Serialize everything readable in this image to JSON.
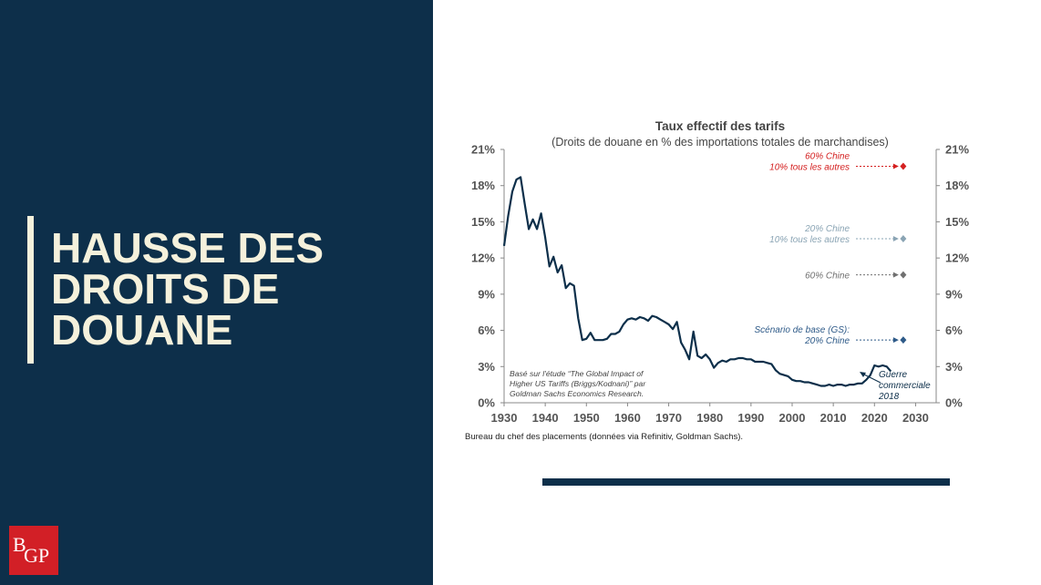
{
  "slide": {
    "title_lines": [
      "HAUSSE DES",
      "DROITS DE",
      "DOUANE"
    ],
    "logo_letters": [
      "B",
      "GP"
    ],
    "source": "Bureau du chef des placements (données via Refinitiv, Goldman Sachs)."
  },
  "colors": {
    "panel": "#0d2f4a",
    "title": "#f5f1dc",
    "line": "#0d2f4a",
    "red": "#d42020",
    "light": "#8aa4b4",
    "gray": "#707070",
    "blue": "#2e5a88"
  },
  "chart_data": {
    "type": "line",
    "title": "Taux effectif des tarifs",
    "subtitle": "(Droits de douane en % des importations totales de marchandises)",
    "xlim": [
      1930,
      2035
    ],
    "ylim": [
      0,
      21
    ],
    "x_ticks": [
      1930,
      1940,
      1950,
      1960,
      1970,
      1980,
      1990,
      2000,
      2010,
      2020,
      2030
    ],
    "y_ticks": [
      "0%",
      "3%",
      "6%",
      "9%",
      "12%",
      "15%",
      "18%",
      "21%"
    ],
    "series": [
      {
        "name": "Taux effectif des tarifs",
        "x": [
          1930,
          1931,
          1932,
          1933,
          1934,
          1935,
          1936,
          1937,
          1938,
          1939,
          1940,
          1941,
          1942,
          1943,
          1944,
          1945,
          1946,
          1947,
          1948,
          1949,
          1950,
          1951,
          1952,
          1953,
          1954,
          1955,
          1956,
          1957,
          1958,
          1959,
          1960,
          1961,
          1962,
          1963,
          1964,
          1965,
          1966,
          1967,
          1968,
          1969,
          1970,
          1971,
          1972,
          1973,
          1974,
          1975,
          1976,
          1977,
          1978,
          1979,
          1980,
          1981,
          1982,
          1983,
          1984,
          1985,
          1986,
          1987,
          1988,
          1989,
          1990,
          1991,
          1992,
          1993,
          1994,
          1995,
          1996,
          1997,
          1998,
          1999,
          2000,
          2001,
          2002,
          2003,
          2004,
          2005,
          2006,
          2007,
          2008,
          2009,
          2010,
          2011,
          2012,
          2013,
          2014,
          2015,
          2016,
          2017,
          2018,
          2019,
          2020,
          2021,
          2022,
          2023,
          2024
        ],
        "values": [
          13.0,
          15.5,
          17.5,
          18.5,
          18.7,
          16.5,
          14.4,
          15.2,
          14.4,
          15.7,
          13.7,
          11.3,
          12.1,
          10.8,
          11.4,
          9.5,
          9.9,
          9.7,
          7.0,
          5.2,
          5.3,
          5.8,
          5.2,
          5.2,
          5.2,
          5.3,
          5.7,
          5.7,
          5.9,
          6.5,
          6.9,
          7.0,
          6.9,
          7.1,
          7.0,
          6.8,
          7.2,
          7.1,
          6.9,
          6.7,
          6.5,
          6.1,
          6.7,
          5.0,
          4.4,
          3.6,
          5.9,
          3.9,
          3.7,
          4.0,
          3.6,
          2.9,
          3.3,
          3.5,
          3.4,
          3.6,
          3.6,
          3.7,
          3.7,
          3.6,
          3.6,
          3.4,
          3.4,
          3.4,
          3.3,
          3.2,
          2.7,
          2.4,
          2.3,
          2.2,
          1.9,
          1.8,
          1.8,
          1.7,
          1.7,
          1.6,
          1.5,
          1.4,
          1.4,
          1.5,
          1.4,
          1.5,
          1.5,
          1.4,
          1.5,
          1.5,
          1.6,
          1.6,
          1.9,
          2.3,
          3.1,
          3.0,
          3.1,
          3.0,
          2.6
        ]
      }
    ],
    "scenarios": [
      {
        "label_lines": [
          "60% Chine",
          "10% tous les autres"
        ],
        "x": 2027,
        "y": 19.6,
        "color": "#d42020"
      },
      {
        "label_lines": [
          "20% Chine",
          "10% tous les autres"
        ],
        "x": 2027,
        "y": 13.6,
        "color": "#8aa4b4"
      },
      {
        "label_lines": [
          "60% Chine"
        ],
        "x": 2027,
        "y": 10.6,
        "color": "#707070"
      },
      {
        "label_lines": [
          "Scénario de base (GS):",
          "20% Chine"
        ],
        "x": 2027,
        "y": 5.2,
        "color": "#2e5a88"
      }
    ],
    "annotations": {
      "note_lines": [
        "Basé sur l'étude “The Global Impact of",
        "Higher US Tariffs (Briggs/Kodnani)” par",
        "Goldman Sachs Economics Research."
      ],
      "trade_war_lines": [
        "Guerre",
        "commerciale",
        "2018"
      ]
    }
  }
}
